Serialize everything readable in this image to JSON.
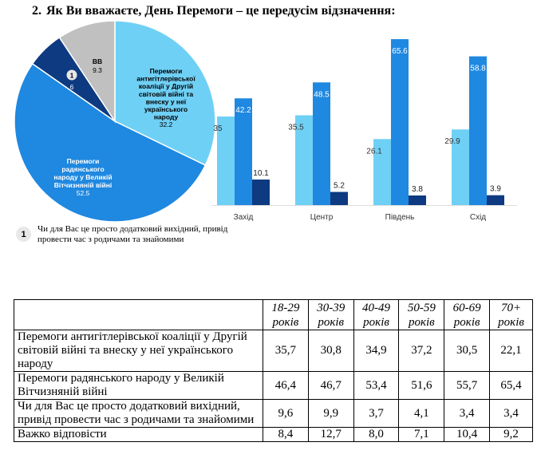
{
  "question": {
    "number": "2.",
    "text": "Як Ви вважаєте, День Перемоги – це передусім відзначення:"
  },
  "footnote": {
    "marker": "1",
    "text": "Чи для Вас це просто додатковий вихідний, привід провести час з родичами та знайомими"
  },
  "colors": {
    "light_blue": "#6fd0f5",
    "blue": "#1f88e0",
    "dark_blue": "#0d3a80",
    "gray": "#c0c0c0"
  },
  "chart_data": [
    {
      "type": "pie",
      "slices": [
        {
          "label": "Перемоги антигітлерівської коаліції у Другій світовій війні та внеску у неї українського народу",
          "value": 32.2,
          "display": "32.2",
          "color": "#6fd0f5"
        },
        {
          "label": "Перемоги радянського народу у Великій Вітчизняній війні",
          "value": 52.5,
          "display": "52.5",
          "color": "#1f88e0"
        },
        {
          "label": "1",
          "value": 6,
          "display": "6",
          "color": "#0d3a80"
        },
        {
          "label": "ВВ",
          "value": 9.3,
          "display": "9.3",
          "color": "#c0c0c0"
        }
      ]
    },
    {
      "type": "bar",
      "categories": [
        "Захід",
        "Центр",
        "Південь",
        "Схід"
      ],
      "series": [
        {
          "values": [
            35,
            35.5,
            26.1,
            29.9
          ],
          "labels": [
            "35",
            "35.5",
            "26.1",
            "29.9"
          ],
          "color": "#6fd0f5"
        },
        {
          "values": [
            42.2,
            48.5,
            65.6,
            58.8
          ],
          "labels": [
            "42.2",
            "48.5",
            "65.6",
            "58.8"
          ],
          "color": "#1f88e0"
        },
        {
          "values": [
            10.1,
            5.2,
            3.8,
            3.9
          ],
          "labels": [
            "10.1",
            "5.2",
            "3.8",
            "3.9"
          ],
          "color": "#0d3a80"
        }
      ],
      "ylim": [
        0,
        70
      ]
    },
    {
      "type": "table",
      "columns": [
        "18-29 років",
        "30-39 років",
        "40-49 років",
        "50-59 років",
        "60-69 років",
        "70+ років"
      ],
      "rows": [
        {
          "label": "Перемоги антигітлерівської коаліції у Другій світовій війні та внеску у неї українського народу",
          "values": [
            "35,7",
            "30,8",
            "34,9",
            "37,2",
            "30,5",
            "22,1"
          ]
        },
        {
          "label": "Перемоги радянського народу у Великій Вітчизняній війні",
          "values": [
            "46,4",
            "46,7",
            "53,4",
            "51,6",
            "55,7",
            "65,4"
          ]
        },
        {
          "label": "Чи для Вас це просто додатковий вихідний, привід провести час з родичами та знайомими",
          "values": [
            "9,6",
            "9,9",
            "3,7",
            "4,1",
            "3,4",
            "3,4"
          ]
        },
        {
          "label": "Важко відповісти",
          "values": [
            "8,4",
            "12,7",
            "8,0",
            "7,1",
            "10,4",
            "9,2"
          ]
        }
      ]
    }
  ]
}
